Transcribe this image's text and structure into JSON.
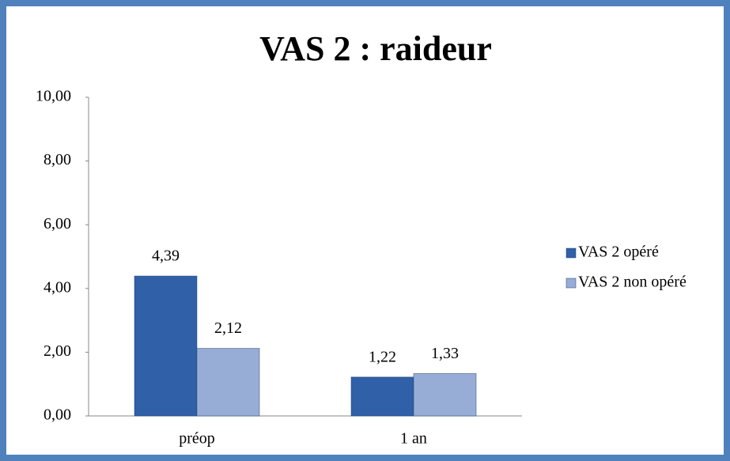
{
  "chart_data": {
    "type": "bar",
    "title": "VAS 2 : raideur",
    "categories": [
      "préop",
      "1 an"
    ],
    "series": [
      {
        "name": "VAS 2 opéré",
        "color": "#2f60a8",
        "values": [
          4.39,
          1.22
        ],
        "value_labels": [
          "4,39",
          "1,22"
        ]
      },
      {
        "name": "VAS 2 non opéré",
        "color": "#98add6",
        "values": [
          2.12,
          1.33
        ],
        "value_labels": [
          "2,12",
          "1,33"
        ]
      }
    ],
    "ylim": [
      0,
      10
    ],
    "yticks": [
      {
        "value": 0,
        "label": "0,00"
      },
      {
        "value": 2,
        "label": "2,00"
      },
      {
        "value": 4,
        "label": "4,00"
      },
      {
        "value": 6,
        "label": "6,00"
      },
      {
        "value": 8,
        "label": "8,00"
      },
      {
        "value": 10,
        "label": "10,00"
      }
    ],
    "grid": false,
    "legend": "right"
  }
}
